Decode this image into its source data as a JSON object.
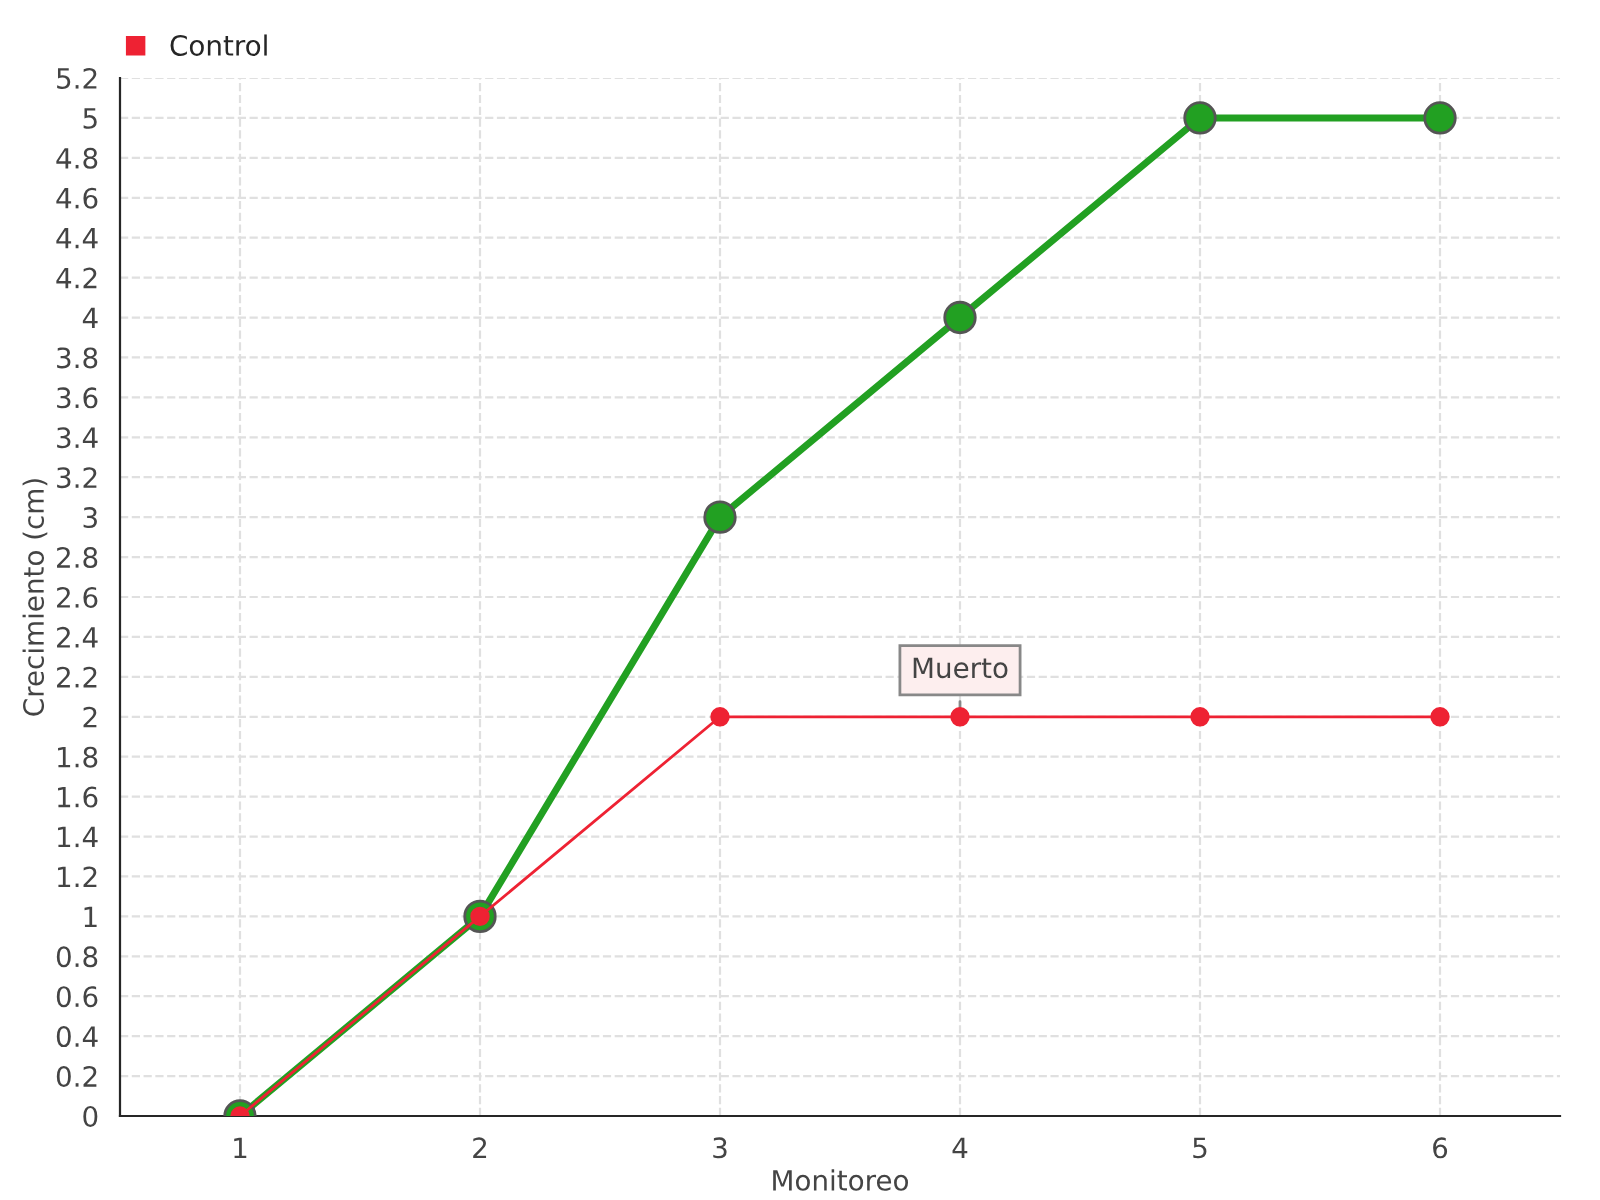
{
  "chart_data": {
    "type": "line",
    "xlabel": "Monitoreo",
    "ylabel": "Crecimiento (cm)",
    "x": [
      1,
      2,
      3,
      4,
      5,
      6
    ],
    "series": [
      {
        "color": "#22a022",
        "values": [
          0,
          1,
          3,
          4,
          5,
          5
        ]
      },
      {
        "name": "Control",
        "color": "#ee2233",
        "values": [
          0,
          1,
          2,
          2,
          2,
          2
        ]
      }
    ],
    "xlim": [
      0.5,
      6.5
    ],
    "xticks": [
      1,
      2,
      3,
      4,
      5,
      6
    ],
    "ylim": [
      0,
      5.2
    ],
    "yticks": [
      0,
      0.2,
      0.4,
      0.6,
      0.8,
      1,
      1.2,
      1.4,
      1.6,
      1.8,
      2,
      2.2,
      2.4,
      2.6,
      2.8,
      3,
      3.2,
      3.4,
      3.6,
      3.8,
      4,
      4.2,
      4.4,
      4.6,
      4.8,
      5,
      5.2
    ],
    "grid": true,
    "legend": "top left",
    "marker": "circle",
    "annotations": [
      {
        "text": "Muerto",
        "x": 4,
        "y": 2
      }
    ]
  }
}
